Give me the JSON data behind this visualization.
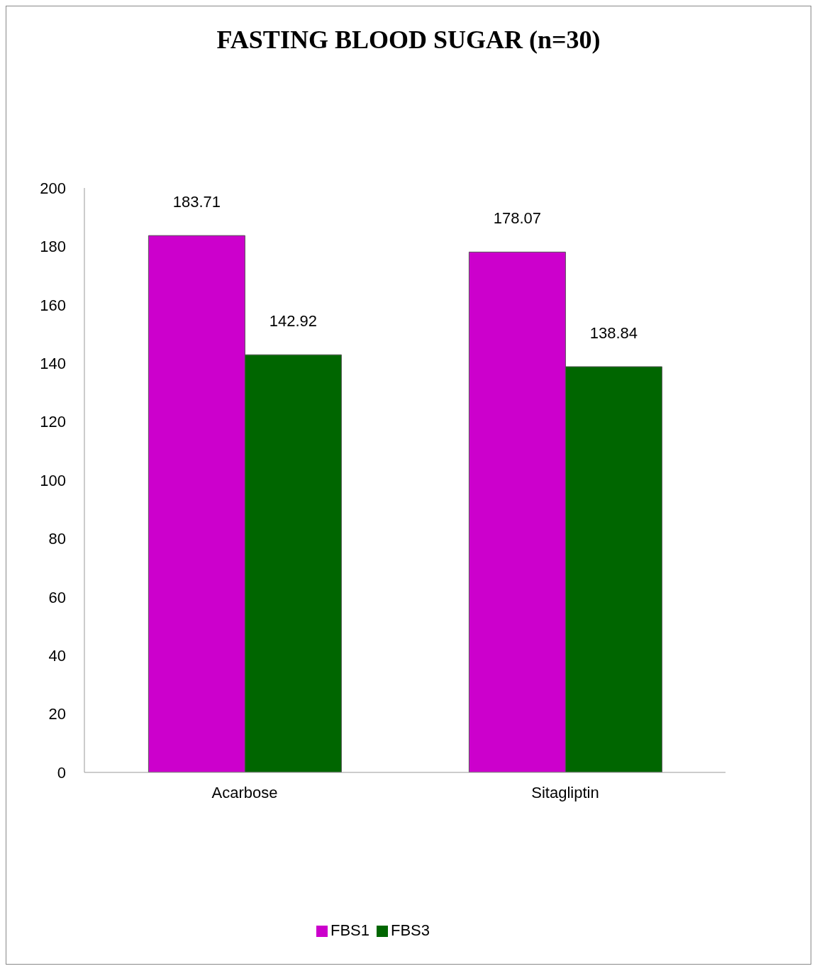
{
  "chart_data": {
    "type": "bar",
    "title": "FASTING BLOOD SUGAR (n=30)",
    "categories": [
      "Acarbose",
      "Sitagliptin"
    ],
    "series": [
      {
        "name": "FBS1",
        "color": "#cc00cc",
        "values": [
          183.71,
          178.07
        ]
      },
      {
        "name": "FBS3",
        "color": "#006600",
        "values": [
          142.92,
          138.84
        ]
      }
    ],
    "ylim": [
      0,
      200
    ],
    "yticks": [
      0,
      20,
      40,
      60,
      80,
      100,
      120,
      140,
      160,
      180,
      200
    ],
    "data_labels": true,
    "legend": "bottom",
    "grid": false
  }
}
